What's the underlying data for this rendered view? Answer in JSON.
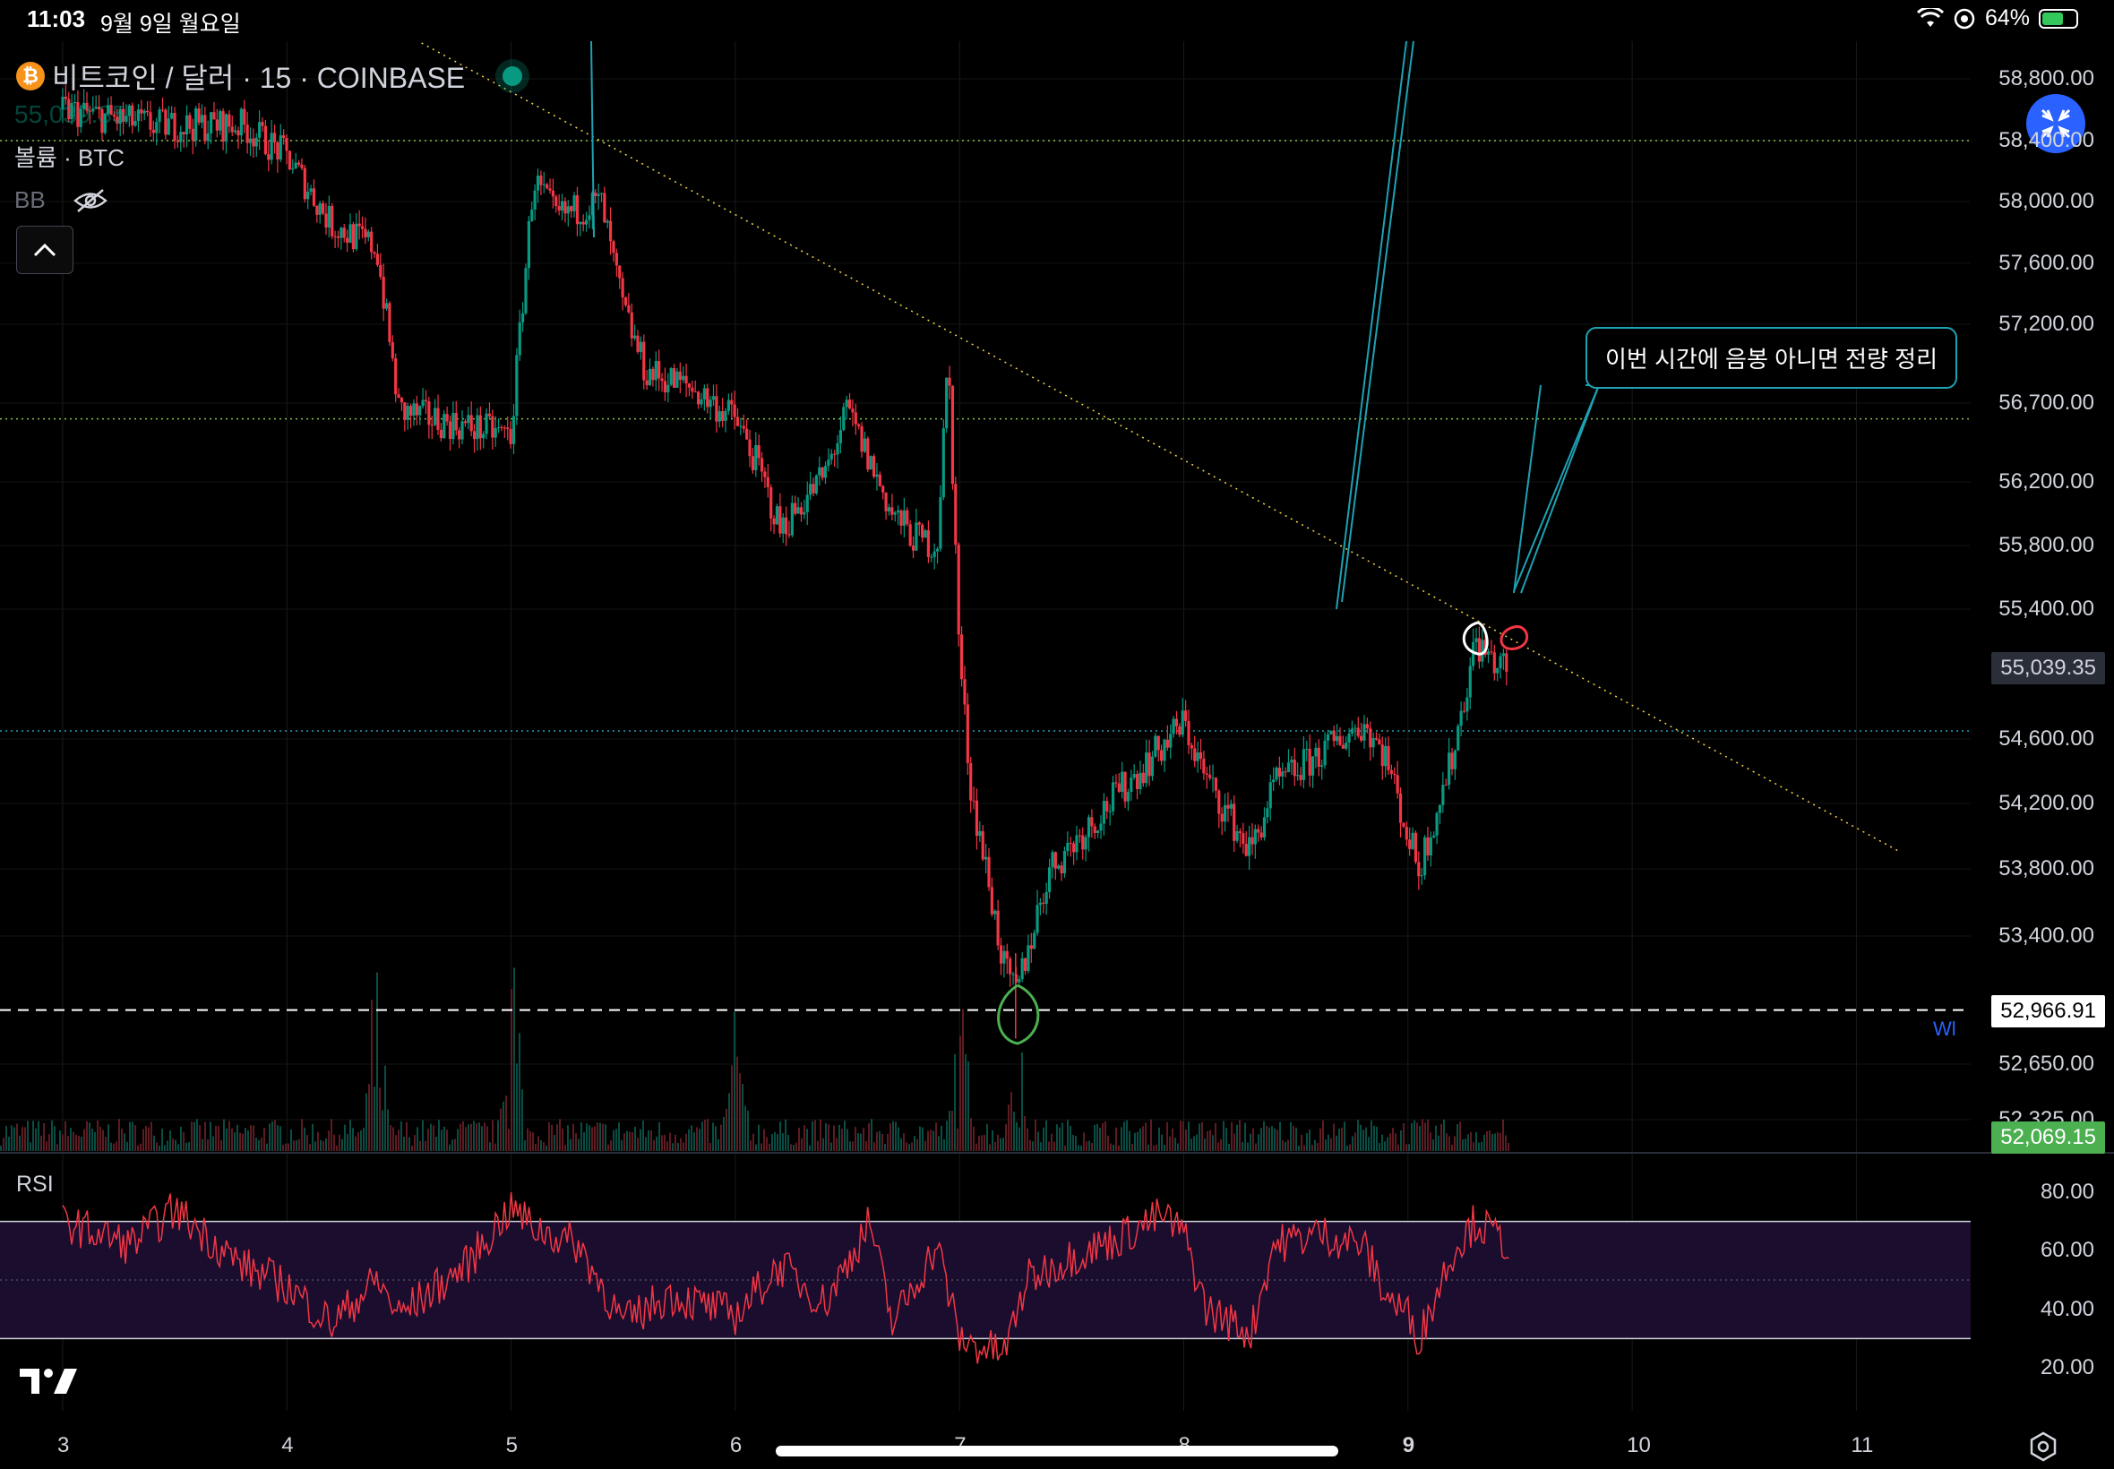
{
  "status_bar": {
    "time": "11:03",
    "date": "9월 9일 월요일",
    "battery_percent": "64%",
    "battery_level": 0.64,
    "icons": [
      "wifi-icon",
      "location-lock-icon",
      "battery-charging-icon"
    ]
  },
  "legend": {
    "symbol_title": "비트코인 / 달러 · 15 · COINBASE",
    "icon": "bitcoin-icon",
    "last_price": "55,039.35",
    "volume_label": "볼륨 · BTC",
    "bb_label": "BB",
    "bb_visibility_icon": "eye-off-icon",
    "collapse_icon": "chevron-up-icon"
  },
  "colors": {
    "up": "#089981",
    "down": "#f23645",
    "rsi_line": "#f23645",
    "trendline": "#f5d547",
    "hline": "#8bc34a",
    "cyan_line": "#1da2b4",
    "fab": "#2962ff"
  },
  "price_axis": {
    "ticks": [
      "58,800.00",
      "58,400.00",
      "58,000.00",
      "57,600.00",
      "57,200.00",
      "56,700.00",
      "56,200.00",
      "55,800.00",
      "55,400.00",
      "54,600.00",
      "54,200.00",
      "53,800.00",
      "53,400.00",
      "52,650.00",
      "52,325.00"
    ],
    "current_price": "55,039.35",
    "crosshair_price": "52,966.91",
    "volume_badge": "52,069.15"
  },
  "rsi_axis": {
    "title": "RSI",
    "ticks": [
      "80.00",
      "60.00",
      "40.00",
      "20.00"
    ]
  },
  "time_axis": {
    "labels": [
      "3",
      "4",
      "5",
      "6",
      "7",
      "8",
      "9",
      "10",
      "11"
    ]
  },
  "annotation": {
    "text": "이번 시간에 음봉 아니면 전량 정리"
  },
  "wl_label": "Wl",
  "fab_icon": "collapse-arrows-icon",
  "settings_icon": "settings-icon",
  "logo": "tradingview-logo",
  "chart_data": {
    "type": "candlestick",
    "symbol": "비트코인 / 달러",
    "interval": "15",
    "exchange": "COINBASE",
    "price_range": [
      52200,
      59000
    ],
    "price_scale_ticks": [
      58800,
      58400,
      58000,
      57600,
      57200,
      56700,
      56200,
      55800,
      55400,
      54600,
      54200,
      53800,
      53400,
      52650,
      52325
    ],
    "x_ticks": [
      "3",
      "4",
      "5",
      "6",
      "7",
      "8",
      "9",
      "10",
      "11"
    ],
    "close_path": {
      "x": [
        3.0,
        3.4,
        3.8,
        4.0,
        4.2,
        4.4,
        4.5,
        4.8,
        5.0,
        5.1,
        5.2,
        5.4,
        5.5,
        5.6,
        5.8,
        6.0,
        6.1,
        6.2,
        6.4,
        6.5,
        6.7,
        6.8,
        6.9,
        6.95,
        7.0,
        7.05,
        7.2,
        7.25,
        7.4,
        7.6,
        7.8,
        8.0,
        8.1,
        8.3,
        8.4,
        8.6,
        8.8,
        8.9,
        9.0,
        9.05,
        9.2,
        9.3,
        9.4
      ],
      "y": [
        58600,
        58500,
        58500,
        58300,
        57850,
        57700,
        56650,
        56550,
        56500,
        58150,
        57900,
        58000,
        57300,
        56900,
        56800,
        56600,
        56300,
        55900,
        56250,
        56650,
        56000,
        55850,
        55800,
        57000,
        55100,
        54300,
        53200,
        53050,
        53800,
        54100,
        54400,
        54700,
        54350,
        53900,
        54300,
        54500,
        54700,
        54500,
        54000,
        53800,
        54500,
        55200,
        55050
      ]
    },
    "notable_lows": [
      {
        "x": 7.25,
        "price": 52800
      }
    ],
    "horizontal_lines": [
      58400,
      56600,
      54650
    ],
    "crosshair_price": 52966.91,
    "current_price": 55039.35,
    "trendline": {
      "from": {
        "x": 5.0,
        "price": 58800
      },
      "to": {
        "x": 11.2,
        "price": 53900
      }
    },
    "rsi": {
      "levels": [
        70,
        30
      ],
      "range": [
        15,
        90
      ],
      "x": [
        3.0,
        3.3,
        3.5,
        3.8,
        4.0,
        4.2,
        4.4,
        4.5,
        4.8,
        5.0,
        5.1,
        5.3,
        5.5,
        5.7,
        6.0,
        6.2,
        6.4,
        6.6,
        6.7,
        6.9,
        7.0,
        7.05,
        7.2,
        7.3,
        7.5,
        7.7,
        7.9,
        8.0,
        8.1,
        8.3,
        8.4,
        8.6,
        8.8,
        8.9,
        9.0,
        9.05,
        9.2,
        9.3,
        9.45
      ],
      "values": [
        70,
        62,
        74,
        55,
        48,
        35,
        50,
        38,
        55,
        75,
        68,
        62,
        35,
        45,
        38,
        55,
        42,
        70,
        35,
        62,
        30,
        28,
        25,
        50,
        58,
        64,
        72,
        66,
        40,
        32,
        62,
        66,
        62,
        45,
        38,
        30,
        60,
        70,
        62
      ]
    },
    "volume_spikes": [
      {
        "x": 5.0,
        "rel": 0.95
      },
      {
        "x": 4.4,
        "rel": 0.8
      },
      {
        "x": 7.0,
        "rel": 0.6
      },
      {
        "x": 7.25,
        "rel": 0.7
      },
      {
        "x": 6.0,
        "rel": 0.5
      }
    ]
  }
}
